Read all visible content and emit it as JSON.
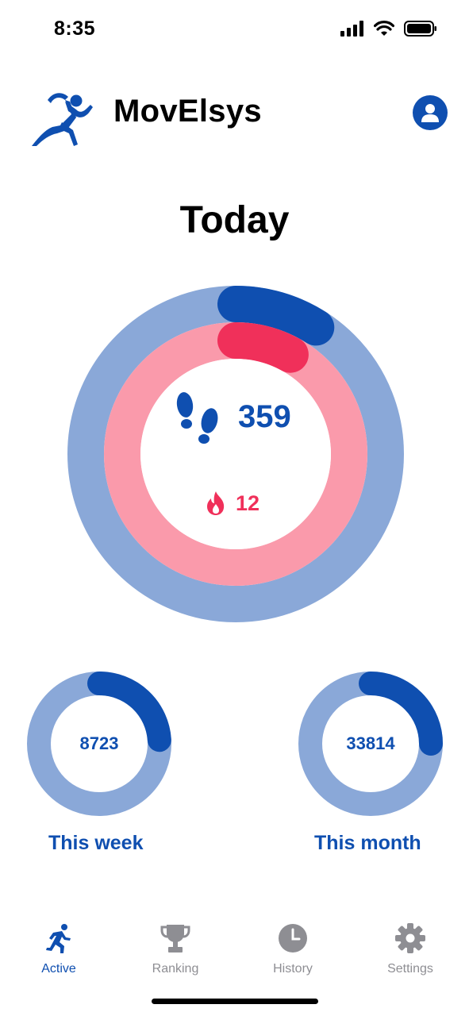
{
  "status_bar": {
    "time": "8:35"
  },
  "header": {
    "title": "MovElsys"
  },
  "today": {
    "title": "Today",
    "steps": "359",
    "calories": "12",
    "steps_progress": 0.09,
    "calories_progress": 0.08
  },
  "summary": {
    "week": {
      "value": "8723",
      "label": "This week",
      "progress": 0.24
    },
    "month": {
      "value": "33814",
      "label": "This month",
      "progress": 0.25
    }
  },
  "tabs": [
    {
      "label": "Active",
      "icon": "runner-icon",
      "active": true
    },
    {
      "label": "Ranking",
      "icon": "trophy-icon",
      "active": false
    },
    {
      "label": "History",
      "icon": "clock-icon",
      "active": false
    },
    {
      "label": "Settings",
      "icon": "gear-icon",
      "active": false
    }
  ],
  "colors": {
    "primary": "#0f4fb0",
    "primary_light": "#8aa8d8",
    "accent": "#f0305a",
    "accent_light": "#fa9aab",
    "inactive": "#8e8e93"
  }
}
